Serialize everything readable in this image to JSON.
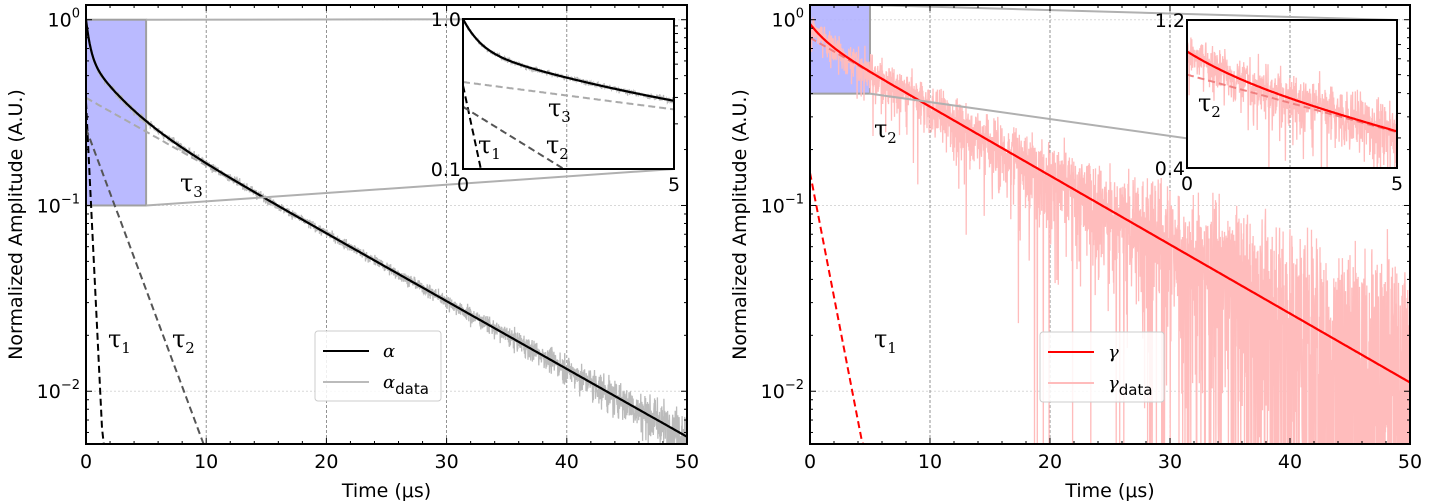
{
  "chart_data": [
    {
      "type": "line",
      "title": "",
      "xlabel": "Time (μs)",
      "ylabel": "Normalized Amplitude (A.U.)",
      "xlim": [
        0,
        50
      ],
      "ylim": [
        0.0052,
        1.2
      ],
      "yscale": "log",
      "grid": true,
      "xticks": [
        0,
        10,
        20,
        30,
        40,
        50
      ],
      "xticklabels": [
        "0",
        "10",
        "20",
        "30",
        "40",
        "50"
      ],
      "yticks": [
        {
          "value": 1,
          "base": "10",
          "exp": "0"
        },
        {
          "value": 0.1,
          "base": "10",
          "exp": "−1"
        },
        {
          "value": 0.01,
          "base": "10",
          "exp": "−2"
        }
      ],
      "fit": {
        "name": "α",
        "color": "#000000",
        "components": [
          {
            "label": "τ",
            "sub": "1",
            "amplitude": 0.36,
            "tau_us": 0.33,
            "color": "#000000"
          },
          {
            "label": "τ",
            "sub": "2",
            "amplitude": 0.26,
            "tau_us": 2.5,
            "color": "#555555"
          },
          {
            "label": "τ",
            "sub": "3",
            "amplitude": 0.38,
            "tau_us": 11.9,
            "color": "#aaaaaa"
          }
        ]
      },
      "data_series": {
        "name": "α",
        "sub": "data",
        "color": "#bbbbbb",
        "noise": "low"
      },
      "legend": {
        "placement": "lower-center",
        "entries": [
          {
            "label": "α",
            "sub": ""
          },
          {
            "label": "α",
            "sub": "data"
          }
        ]
      },
      "zoom_region": {
        "x": [
          0,
          5
        ],
        "y": [
          0.1,
          1.0
        ],
        "color": "#b3b3ff"
      },
      "inset": {
        "xlim": [
          0,
          5
        ],
        "ylim": [
          0.1,
          1.0
        ],
        "yscale": "log",
        "xticklabels": [
          "0",
          "5"
        ],
        "yticklabels": [
          "0.1",
          "1.0"
        ],
        "annotations": [
          {
            "label": "τ",
            "sub": "3"
          },
          {
            "label": "τ",
            "sub": "1"
          },
          {
            "label": "τ",
            "sub": "2"
          }
        ]
      },
      "annotations": [
        {
          "label": "τ",
          "sub": "1"
        },
        {
          "label": "τ",
          "sub": "2"
        },
        {
          "label": "τ",
          "sub": "3"
        }
      ]
    },
    {
      "type": "line",
      "title": "",
      "xlabel": "Time (μs)",
      "ylabel": "Normalized Amplitude (A.U.)",
      "xlim": [
        0,
        50
      ],
      "ylim": [
        0.0052,
        1.2
      ],
      "yscale": "log",
      "grid": true,
      "xticks": [
        0,
        10,
        20,
        30,
        40,
        50
      ],
      "xticklabels": [
        "0",
        "10",
        "20",
        "30",
        "40",
        "50"
      ],
      "yticks": [
        {
          "value": 1,
          "base": "10",
          "exp": "0"
        },
        {
          "value": 0.1,
          "base": "10",
          "exp": "−1"
        },
        {
          "value": 0.01,
          "base": "10",
          "exp": "−2"
        }
      ],
      "fit": {
        "name": "γ",
        "color": "#ff0000",
        "components": [
          {
            "label": "τ",
            "sub": "1",
            "amplitude": 0.15,
            "tau_us": 1.3,
            "color": "#ff0000"
          },
          {
            "label": "τ",
            "sub": "2",
            "amplitude": 0.8,
            "tau_us": 11.7,
            "color": "#f08080"
          }
        ]
      },
      "data_series": {
        "name": "γ",
        "sub": "data",
        "color": "#ffbcbc",
        "noise": "high"
      },
      "legend": {
        "placement": "lower-center",
        "entries": [
          {
            "label": "γ",
            "sub": ""
          },
          {
            "label": "γ",
            "sub": "data"
          }
        ]
      },
      "zoom_region": {
        "x": [
          0,
          5
        ],
        "y": [
          0.4,
          1.2
        ],
        "color": "#b3b3ff"
      },
      "inset": {
        "xlim": [
          0,
          5
        ],
        "ylim": [
          0.4,
          1.2
        ],
        "yscale": "log",
        "xticklabels": [
          "0",
          "5"
        ],
        "yticklabels": [
          "0.4",
          "1.2"
        ],
        "annotations": [
          {
            "label": "τ",
            "sub": "2"
          }
        ]
      },
      "annotations": [
        {
          "label": "τ",
          "sub": "2"
        },
        {
          "label": "τ",
          "sub": "1"
        }
      ]
    }
  ]
}
